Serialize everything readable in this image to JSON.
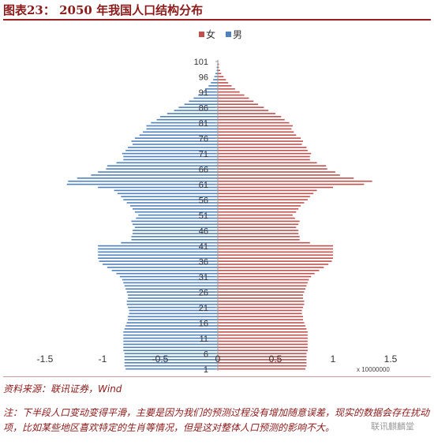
{
  "header": {
    "title": "图表23： 2050 年我国人口结构分布"
  },
  "footer": {
    "source": "资料来源：联讯证券，Wind",
    "note": "注：下半段人口变动变得平滑，主要是因为我们的预测过程没有增加随意误差，现实的数据会存在扰动项，比如某些地区喜欢特定的生肖等情况，但是这对整体人口预测的影响不大。",
    "watermark": "联讯麒麟堂"
  },
  "chart_data": {
    "type": "bar",
    "orientation": "horizontal",
    "title": "",
    "xlabel": "",
    "ylabel": "",
    "x_multiplier_label": "x 10000000",
    "xlim": [
      -1.5,
      1.5
    ],
    "x_ticks": [
      -1.5,
      -1,
      -0.5,
      0,
      0.5,
      1,
      1.5
    ],
    "y_tick_labels": [
      "1",
      "6",
      "11",
      "16",
      "21",
      "26",
      "31",
      "36",
      "41",
      "46",
      "51",
      "56",
      "61",
      "66",
      "71",
      "76",
      "81",
      "86",
      "91",
      "96",
      "101"
    ],
    "legend_position": "top",
    "legend": [
      {
        "name": "女",
        "color": "#c0504d"
      },
      {
        "name": "男",
        "color": "#4f81bd"
      }
    ],
    "ages": [
      1,
      2,
      3,
      4,
      5,
      6,
      7,
      8,
      9,
      10,
      11,
      12,
      13,
      14,
      15,
      16,
      17,
      18,
      19,
      20,
      21,
      22,
      23,
      24,
      25,
      26,
      27,
      28,
      29,
      30,
      31,
      32,
      33,
      34,
      35,
      36,
      37,
      38,
      39,
      40,
      41,
      42,
      43,
      44,
      45,
      46,
      47,
      48,
      49,
      50,
      51,
      52,
      53,
      54,
      55,
      56,
      57,
      58,
      59,
      60,
      61,
      62,
      63,
      64,
      65,
      66,
      67,
      68,
      69,
      70,
      71,
      72,
      73,
      74,
      75,
      76,
      77,
      78,
      79,
      80,
      81,
      82,
      83,
      84,
      85,
      86,
      87,
      88,
      89,
      90,
      91,
      92,
      93,
      94,
      95,
      96,
      97,
      98,
      99,
      100,
      101
    ],
    "series": [
      {
        "name": "女",
        "color": "#c0504d",
        "values": [
          0.76,
          0.77,
          0.77,
          0.77,
          0.77,
          0.77,
          0.78,
          0.78,
          0.78,
          0.78,
          0.78,
          0.78,
          0.78,
          0.77,
          0.76,
          0.75,
          0.74,
          0.74,
          0.73,
          0.73,
          0.74,
          0.75,
          0.75,
          0.74,
          0.74,
          0.75,
          0.76,
          0.77,
          0.78,
          0.79,
          0.81,
          0.84,
          0.88,
          0.92,
          0.96,
          0.99,
          1.0,
          1.0,
          1.0,
          1.0,
          1.0,
          0.8,
          0.71,
          0.71,
          0.7,
          0.7,
          0.68,
          0.7,
          0.71,
          0.67,
          0.65,
          0.68,
          0.7,
          0.72,
          0.75,
          0.78,
          0.8,
          0.83,
          0.86,
          1.0,
          1.27,
          1.34,
          1.18,
          1.06,
          1.02,
          0.95,
          0.94,
          0.86,
          0.8,
          0.8,
          0.81,
          0.78,
          0.77,
          0.73,
          0.74,
          0.72,
          0.68,
          0.66,
          0.64,
          0.65,
          0.62,
          0.58,
          0.55,
          0.5,
          0.44,
          0.4,
          0.35,
          0.31,
          0.27,
          0.23,
          0.19,
          0.15,
          0.12,
          0.09,
          0.07,
          0.05,
          0.03,
          0.02,
          0.01,
          0.01,
          0.005
        ]
      },
      {
        "name": "男",
        "color": "#4f81bd",
        "values": [
          0.8,
          0.81,
          0.81,
          0.81,
          0.81,
          0.81,
          0.82,
          0.82,
          0.82,
          0.82,
          0.82,
          0.82,
          0.82,
          0.81,
          0.8,
          0.79,
          0.78,
          0.78,
          0.77,
          0.77,
          0.78,
          0.79,
          0.79,
          0.78,
          0.78,
          0.79,
          0.8,
          0.81,
          0.82,
          0.83,
          0.85,
          0.88,
          0.92,
          0.96,
          1.0,
          1.03,
          1.04,
          1.04,
          1.04,
          1.04,
          1.04,
          0.84,
          0.75,
          0.75,
          0.74,
          0.74,
          0.72,
          0.74,
          0.75,
          0.71,
          0.69,
          0.72,
          0.74,
          0.76,
          0.79,
          0.82,
          0.84,
          0.87,
          0.9,
          1.04,
          1.31,
          1.3,
          1.22,
          1.1,
          1.04,
          0.97,
          0.96,
          0.88,
          0.82,
          0.82,
          0.83,
          0.8,
          0.78,
          0.74,
          0.75,
          0.72,
          0.68,
          0.65,
          0.62,
          0.62,
          0.58,
          0.53,
          0.5,
          0.44,
          0.38,
          0.34,
          0.29,
          0.25,
          0.21,
          0.17,
          0.14,
          0.11,
          0.08,
          0.06,
          0.04,
          0.03,
          0.02,
          0.01,
          0.01,
          0.005,
          0.003
        ]
      }
    ]
  }
}
